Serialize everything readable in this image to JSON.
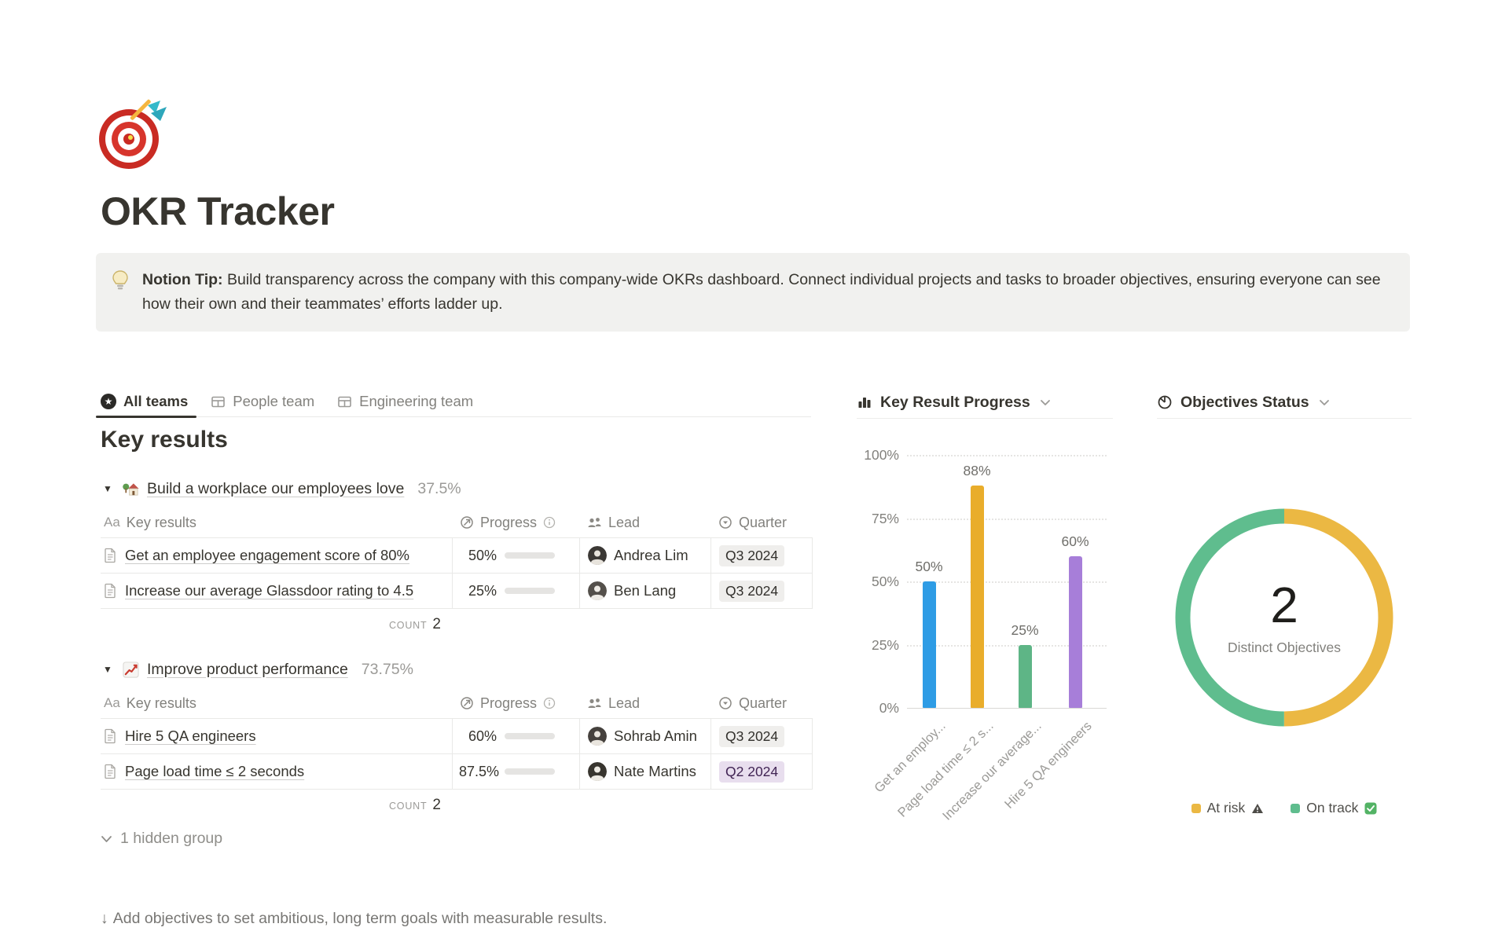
{
  "page": {
    "icon": "🎯",
    "icon_name": "dart-target-icon",
    "title": "OKR Tracker"
  },
  "callout": {
    "icon": "💡",
    "icon_name": "light-bulb-icon",
    "bold": "Notion Tip:",
    "text": " Build transparency across the company with this company-wide OKRs dashboard. Connect individual projects and tasks to broader objectives, ensuring everyone can see how their own and their teammates’ efforts ladder up."
  },
  "tabs": [
    {
      "label": "All teams",
      "icon": "star-circle-icon",
      "star_glyph": "★",
      "active": true
    },
    {
      "label": "People team",
      "icon": "table-icon",
      "active": false
    },
    {
      "label": "Engineering team",
      "icon": "table-icon",
      "active": false
    }
  ],
  "key_results": {
    "section_title": "Key results",
    "header": {
      "name_icon": "Aa",
      "name": "Key results",
      "progress": "Progress",
      "lead": "Lead",
      "quarter": "Quarter"
    },
    "groups": [
      {
        "emoji": "🏡",
        "emoji_name": "house-garden-icon",
        "title": "Build a workplace our employees love",
        "percent": "37.5%",
        "rows": [
          {
            "name": "Get an employee engagement score of 80%",
            "progress_label": "50%",
            "progress_value": 50,
            "lead": "Andrea Lim",
            "quarter": "Q3 2024",
            "quarter_variant": "gray"
          },
          {
            "name": "Increase our average Glassdoor rating to 4.5",
            "progress_label": "25%",
            "progress_value": 25,
            "lead": "Ben Lang",
            "quarter": "Q3 2024",
            "quarter_variant": "gray"
          }
        ],
        "count_label": "COUNT",
        "count_value": "2"
      },
      {
        "emoji": "📈",
        "emoji_name": "chart-increasing-icon",
        "title": "Improve product performance",
        "percent": "73.75%",
        "rows": [
          {
            "name": "Hire 5 QA engineers",
            "progress_label": "60%",
            "progress_value": 60,
            "lead": "Sohrab Amin",
            "quarter": "Q3 2024",
            "quarter_variant": "gray"
          },
          {
            "name": "Page load time ≤ 2 seconds",
            "progress_label": "87.5%",
            "progress_value": 87.5,
            "lead": "Nate Martins",
            "quarter": "Q2 2024",
            "quarter_variant": "purple"
          }
        ],
        "count_label": "COUNT",
        "count_value": "2"
      }
    ],
    "hidden_group_label": "1 hidden group"
  },
  "footer": {
    "arrow": "↓",
    "text": "Add objectives to set ambitious, long term goals with measurable results."
  },
  "chart_data": [
    {
      "type": "bar",
      "title": "Key Result Progress",
      "categories": [
        "Get an employ...",
        "Page load time ≤ 2 s...",
        "Increase our average...",
        "Hire 5 QA engineers"
      ],
      "values": [
        50,
        88,
        25,
        60
      ],
      "value_labels": [
        "50%",
        "88%",
        "25%",
        "60%"
      ],
      "colors": [
        "#2E9CE5",
        "#E9AD2B",
        "#5EB586",
        "#A77ED9"
      ],
      "ytick_labels": [
        "100%",
        "75%",
        "50%",
        "25%",
        "0%"
      ],
      "ylim": [
        0,
        100
      ],
      "grid": "dotted-horizontal",
      "legend_position": "none",
      "xlabel": "",
      "ylabel": ""
    },
    {
      "type": "pie",
      "title": "Objectives Status",
      "donut": true,
      "center_value": "2",
      "center_label": "Distinct Objectives",
      "slices": [
        {
          "label": "At risk",
          "legend_icon": "⚠",
          "value": 1,
          "color": "#EBB843"
        },
        {
          "label": "On track",
          "legend_icon": "✅",
          "value": 1,
          "color": "#5FBD8E"
        }
      ],
      "legend_position": "bottom"
    }
  ]
}
